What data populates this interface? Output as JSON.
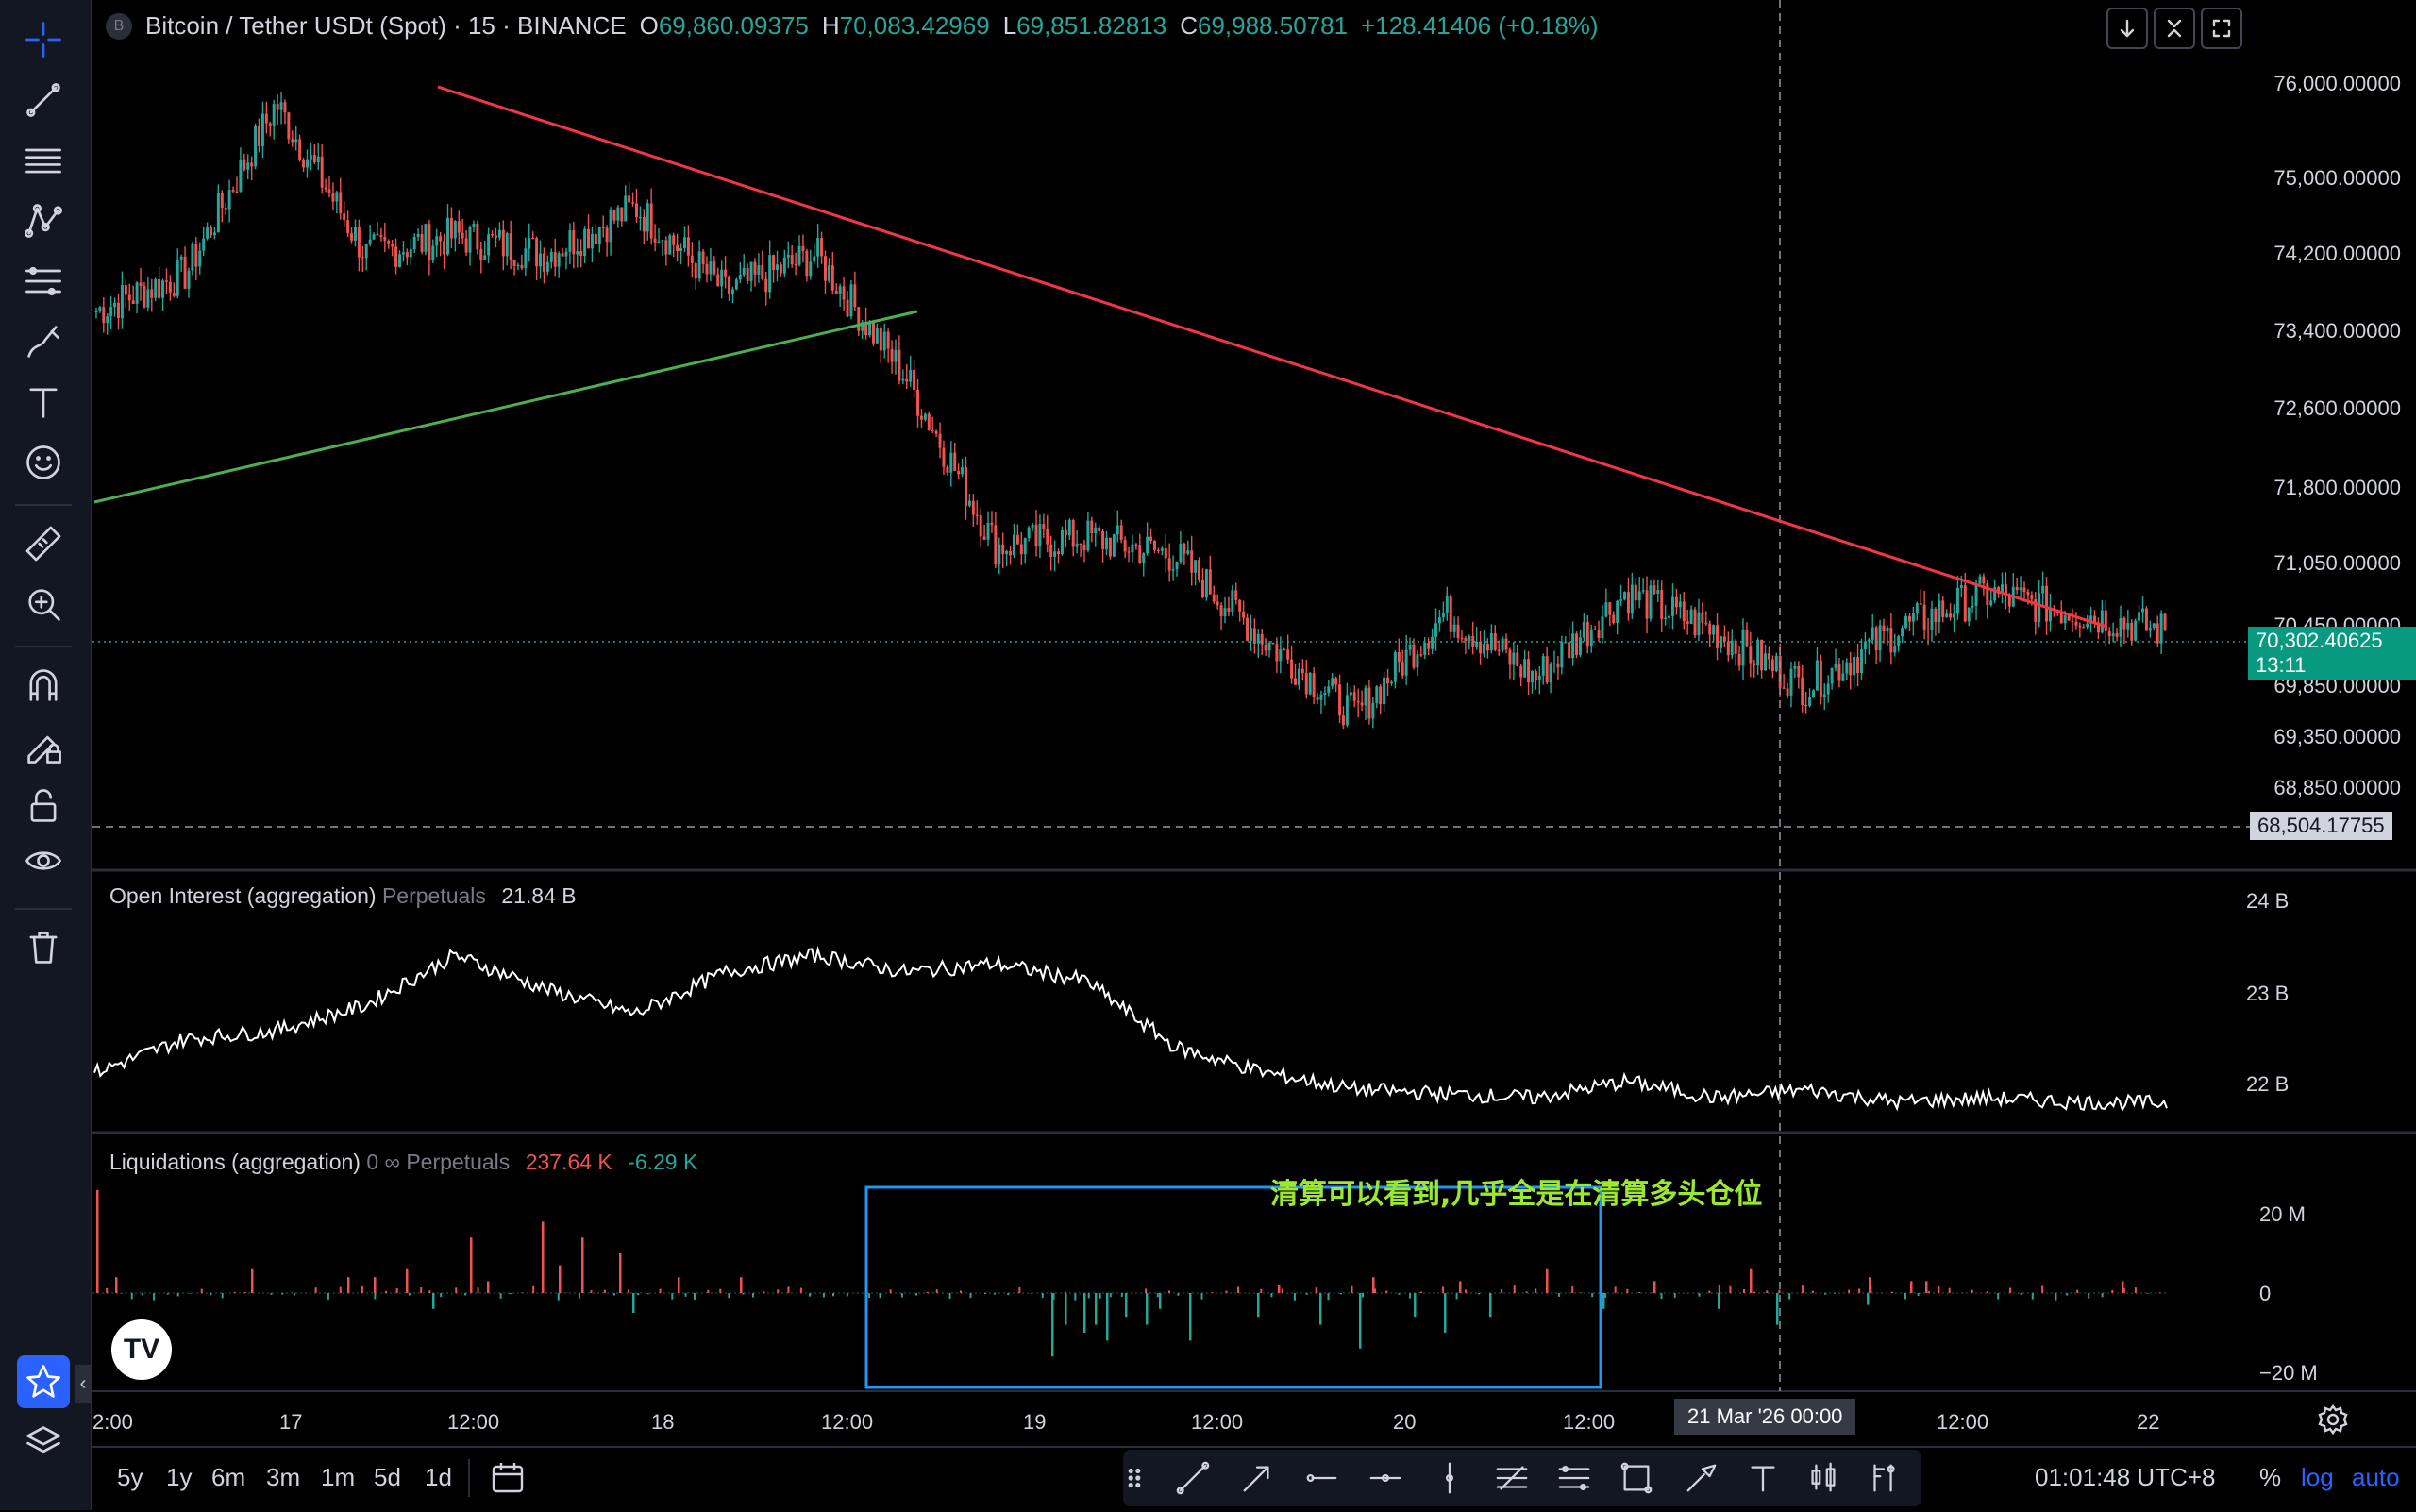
{
  "symbol": {
    "badge": "B",
    "title": "Bitcoin / Tether USDt (Spot) · 15 · BINANCE",
    "o_label": "O",
    "o": "69,860.09375",
    "h_label": "H",
    "h": "70,083.42969",
    "l_label": "L",
    "l": "69,851.82813",
    "c_label": "C",
    "c": "69,988.50781",
    "change": "+128.41406 (+0.18%)"
  },
  "price_axis": {
    "ticks": [
      "76,000.00000",
      "75,000.00000",
      "74,200.00000",
      "73,400.00000",
      "72,600.00000",
      "71,800.00000",
      "71,050.00000",
      "70,450.00000",
      "69,850.00000",
      "69,350.00000",
      "68,850.00000"
    ],
    "last_price": "70,302.40625",
    "countdown": "13:11",
    "crosshair_price": "68,504.17755"
  },
  "oi_pane": {
    "title": "Open Interest (aggregation)",
    "sub": "Perpetuals",
    "value": "21.84 B",
    "ticks": [
      "24 B",
      "23 B",
      "22 B"
    ]
  },
  "liq_pane": {
    "title": "Liquidations (aggregation)",
    "sub": "0 ∞ Perpetuals",
    "long_value": "237.64 K",
    "short_value": "-6.29 K",
    "ticks": [
      "20 M",
      "0",
      "−20 M"
    ],
    "annotation": "清算可以看到,几乎全是在清算多头仓位"
  },
  "time_axis": {
    "labels": [
      "2:00",
      "17",
      "12:00",
      "18",
      "12:00",
      "19",
      "12:00",
      "20",
      "12:00",
      "12:00",
      "22"
    ],
    "crosshair_label": "21 Mar '26   00:00"
  },
  "bottom": {
    "timeframes": [
      "5y",
      "1y",
      "6m",
      "3m",
      "1m",
      "5d",
      "1d"
    ],
    "clock": "01:01:48 UTC+8",
    "percent": "%",
    "log": "log",
    "auto": "auto"
  },
  "colors": {
    "up": "#26a69a",
    "down": "#ef5350",
    "trend_red": "#f23645",
    "trend_green": "#4caf50",
    "box_blue": "#2196f3",
    "accent": "#2962ff"
  },
  "chart_data": [
    {
      "type": "candlestick",
      "title": "Bitcoin / Tether USDt (Spot) · 15 · BINANCE",
      "x_labels": [
        "17",
        "18",
        "19",
        "20",
        "21",
        "22"
      ],
      "ylim": [
        68500,
        76200
      ],
      "approx_close_path": [
        73700,
        74100,
        75900,
        74300,
        74500,
        74300,
        74800,
        73900,
        74300,
        73000,
        71200,
        71300,
        71100,
        70200,
        69400,
        70500,
        69800,
        70700,
        70300,
        69700,
        70300,
        70700,
        70500,
        70300
      ],
      "last": 70302.40625
    },
    {
      "type": "line",
      "title": "Open Interest (aggregation)",
      "ylim": [
        21.7,
        24.2
      ],
      "approx_values": [
        22.2,
        22.6,
        22.7,
        23.0,
        23.6,
        23.2,
        22.9,
        23.4,
        23.6,
        23.4,
        23.5,
        23.3,
        22.5,
        22.2,
        22.0,
        21.95,
        21.9,
        22.1,
        21.9,
        22.0,
        21.85,
        21.9,
        21.85,
        21.84
      ]
    },
    {
      "type": "bar",
      "title": "Liquidations (aggregation)",
      "ylim": [
        -24,
        24
      ],
      "unit": "M"
    }
  ]
}
